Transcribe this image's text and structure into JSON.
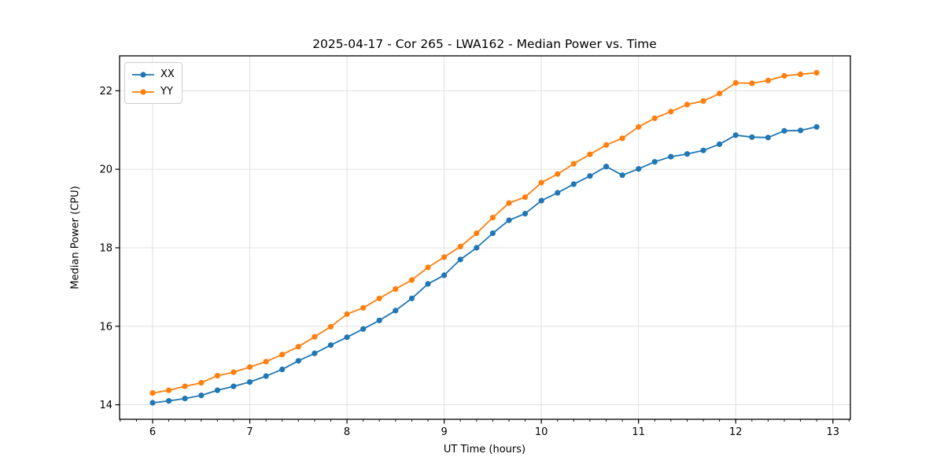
{
  "chart_data": {
    "type": "line",
    "title": "2025-04-17 - Cor 265 - LWA162 - Median Power vs. Time",
    "xlabel": "UT Time (hours)",
    "ylabel": "Median Power (CPU)",
    "xlim": [
      5.66,
      13.18
    ],
    "ylim": [
      13.63,
      22.89
    ],
    "xticks": [
      6,
      7,
      8,
      9,
      10,
      11,
      12,
      13
    ],
    "yticks": [
      14,
      16,
      18,
      20,
      22
    ],
    "x_minor_step": 0.1666667,
    "grid": true,
    "grid_color": "#e0e0e0",
    "spine_color": "#000000",
    "legend_position": "upper-left",
    "x": [
      6.0,
      6.167,
      6.333,
      6.5,
      6.667,
      6.833,
      7.0,
      7.167,
      7.333,
      7.5,
      7.667,
      7.833,
      8.0,
      8.167,
      8.333,
      8.5,
      8.667,
      8.833,
      9.0,
      9.167,
      9.333,
      9.5,
      9.667,
      9.833,
      10.0,
      10.167,
      10.333,
      10.5,
      10.667,
      10.833,
      11.0,
      11.167,
      11.333,
      11.5,
      11.667,
      11.833,
      12.0,
      12.167,
      12.333,
      12.5,
      12.667,
      12.833
    ],
    "series": [
      {
        "name": "XX",
        "color": "#1f77b4",
        "values": [
          14.05,
          14.1,
          14.16,
          14.24,
          14.37,
          14.47,
          14.58,
          14.73,
          14.9,
          15.12,
          15.31,
          15.52,
          15.72,
          15.93,
          16.15,
          16.4,
          16.71,
          17.08,
          17.3,
          17.7,
          18.0,
          18.37,
          18.7,
          18.87,
          19.2,
          19.4,
          19.62,
          19.83,
          20.07,
          19.85,
          20.01,
          20.19,
          20.32,
          20.39,
          20.48,
          20.64,
          20.87,
          20.82,
          20.81,
          20.98,
          20.99,
          21.08
        ]
      },
      {
        "name": "YY",
        "color": "#ff7f0e",
        "values": [
          14.3,
          14.37,
          14.47,
          14.56,
          14.74,
          14.83,
          14.96,
          15.1,
          15.28,
          15.48,
          15.73,
          15.99,
          16.31,
          16.47,
          16.71,
          16.95,
          17.18,
          17.5,
          17.76,
          18.03,
          18.37,
          18.77,
          19.14,
          19.29,
          19.66,
          19.88,
          20.14,
          20.38,
          20.62,
          20.79,
          21.08,
          21.3,
          21.47,
          21.65,
          21.74,
          21.93,
          22.2,
          22.19,
          22.26,
          22.38,
          22.42,
          22.46
        ]
      }
    ]
  }
}
